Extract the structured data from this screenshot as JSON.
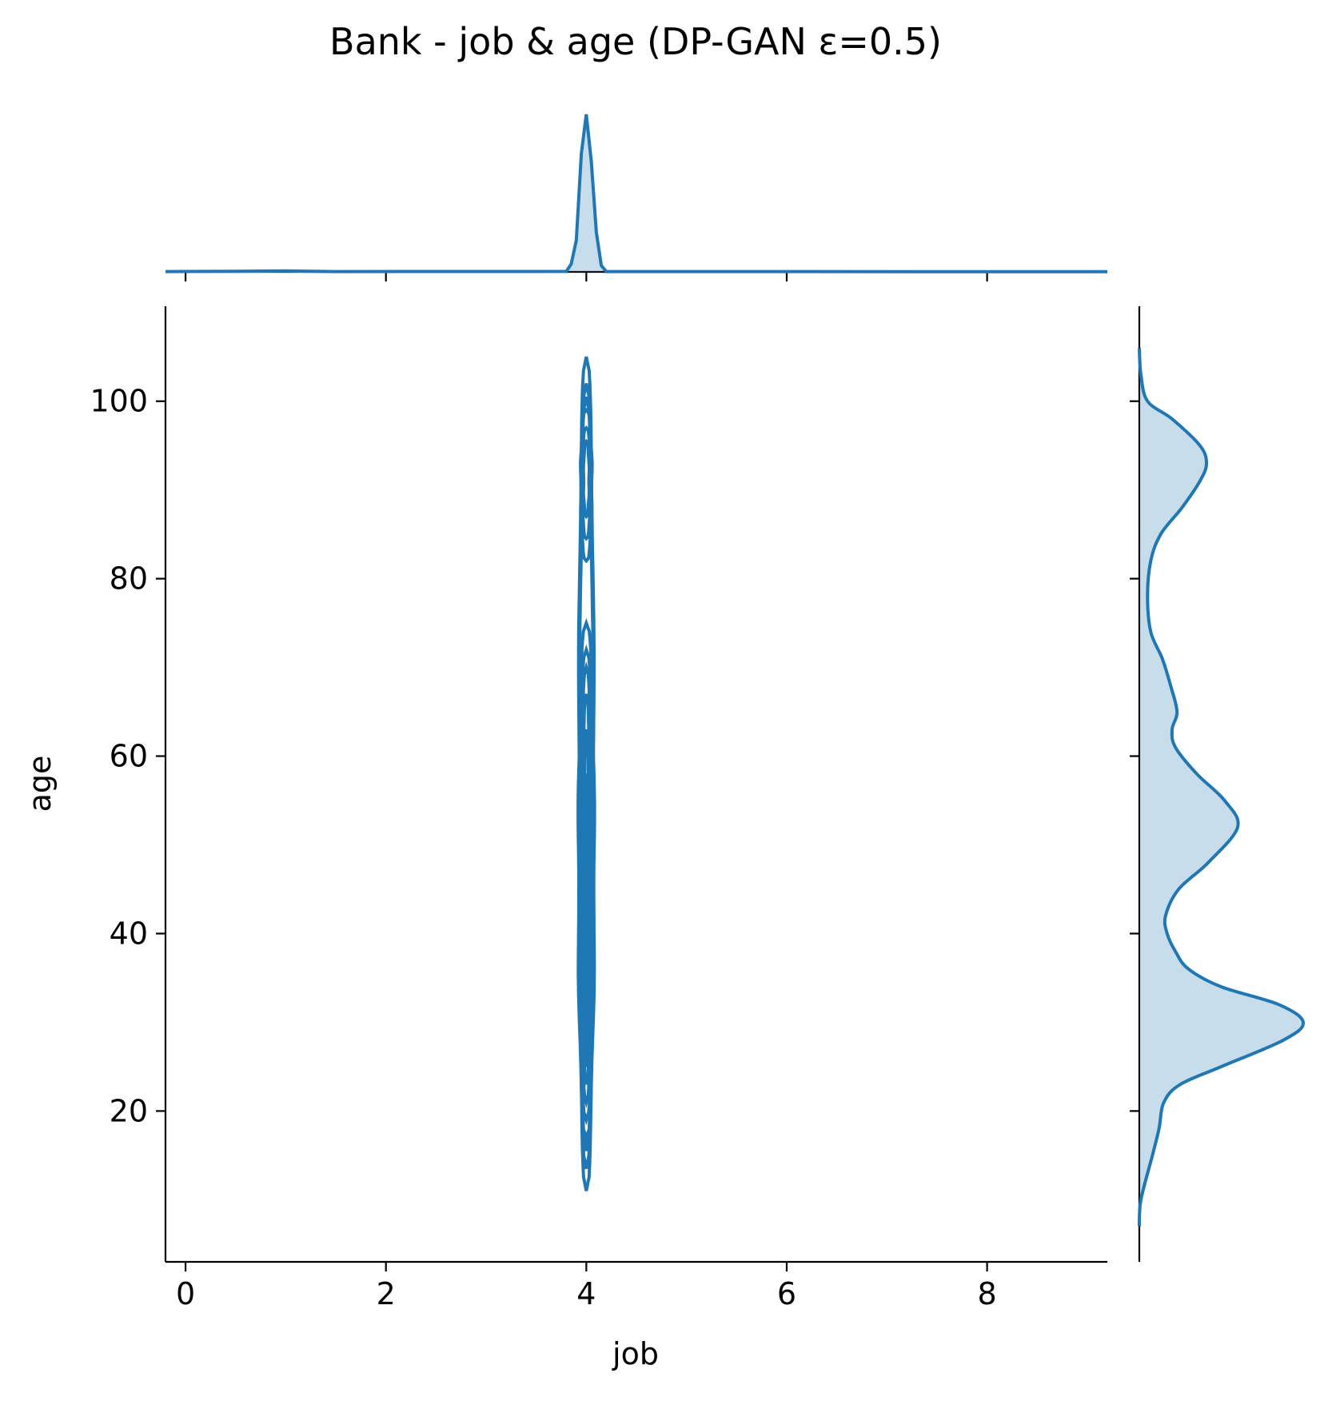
{
  "chart_data": {
    "type": "kde-jointplot",
    "title": "Bank - job & age (DP-GAN ε=0.5)",
    "xlabel": "job",
    "ylabel": "age",
    "xlim": [
      -0.2,
      9.2
    ],
    "ylim": [
      3.0,
      110.7
    ],
    "xticks": [
      0,
      2,
      4,
      6,
      8
    ],
    "yticks": [
      20,
      40,
      60,
      80,
      100
    ],
    "color": "#1f77b4",
    "joint_contours": [
      {
        "name": "outer-upper",
        "x_center": 4.0,
        "ymin": 11.0,
        "ymax": 105.0,
        "half_width": 0.08
      },
      {
        "name": "level-2",
        "x_center": 4.0,
        "ymin": 13.5,
        "ymax": 102.0,
        "half_width": 0.075
      },
      {
        "name": "level-3",
        "x_center": 4.0,
        "ymin": 15.5,
        "ymax": 100.5,
        "half_width": 0.07
      },
      {
        "name": "upper-mode-a",
        "x_center": 4.0,
        "ymin": 82.0,
        "ymax": 99.0,
        "half_width": 0.06
      },
      {
        "name": "upper-mode-b",
        "x_center": 4.0,
        "ymin": 84.5,
        "ymax": 97.0,
        "half_width": 0.045
      },
      {
        "name": "upper-mode-c",
        "x_center": 4.0,
        "ymin": 87.0,
        "ymax": 95.5,
        "half_width": 0.03
      },
      {
        "name": "lower-a",
        "x_center": 4.0,
        "ymin": 17.0,
        "ymax": 75.0,
        "half_width": 0.085
      },
      {
        "name": "lower-b",
        "x_center": 4.0,
        "ymin": 19.0,
        "ymax": 72.0,
        "half_width": 0.07
      },
      {
        "name": "lower-c",
        "x_center": 4.0,
        "ymin": 21.0,
        "ymax": 70.0,
        "half_width": 0.055
      },
      {
        "name": "lower-d",
        "x_center": 4.0,
        "ymin": 23.0,
        "ymax": 67.0,
        "half_width": 0.04
      },
      {
        "name": "lower-e",
        "x_center": 4.0,
        "ymin": 25.0,
        "ymax": 63.0,
        "half_width": 0.028
      },
      {
        "name": "lower-f",
        "x_center": 4.0,
        "ymin": 27.0,
        "ymax": 58.0,
        "half_width": 0.016
      }
    ],
    "marginal_x": {
      "x": [
        -0.2,
        0.5,
        1.0,
        1.5,
        3.8,
        3.85,
        3.9,
        3.95,
        4.0,
        4.05,
        4.1,
        4.15,
        4.2,
        5.0,
        9.2
      ],
      "density": [
        0.002,
        0.004,
        0.006,
        0.002,
        0.003,
        0.05,
        0.2,
        0.75,
        1.0,
        0.7,
        0.25,
        0.04,
        0.002,
        0.002,
        0.001
      ]
    },
    "marginal_y": {
      "y": [
        7.0,
        10.0,
        15.0,
        18.0,
        21.0,
        23.0,
        25.0,
        28.0,
        30.0,
        32.0,
        34.0,
        36.0,
        38.0,
        40.0,
        42.0,
        45.0,
        48.0,
        52.0,
        55.0,
        58.0,
        61.0,
        63.0,
        65.0,
        68.0,
        71.0,
        74.0,
        78.0,
        82.0,
        85.0,
        88.0,
        91.0,
        93.0,
        95.0,
        98.0,
        100.0,
        103.0,
        106.0
      ],
      "density": [
        0.0,
        0.01,
        0.08,
        0.12,
        0.15,
        0.25,
        0.5,
        0.88,
        1.0,
        0.85,
        0.5,
        0.3,
        0.22,
        0.17,
        0.16,
        0.24,
        0.42,
        0.6,
        0.52,
        0.35,
        0.22,
        0.2,
        0.23,
        0.19,
        0.14,
        0.07,
        0.05,
        0.07,
        0.13,
        0.26,
        0.37,
        0.41,
        0.37,
        0.2,
        0.05,
        0.01,
        0.0
      ]
    }
  }
}
